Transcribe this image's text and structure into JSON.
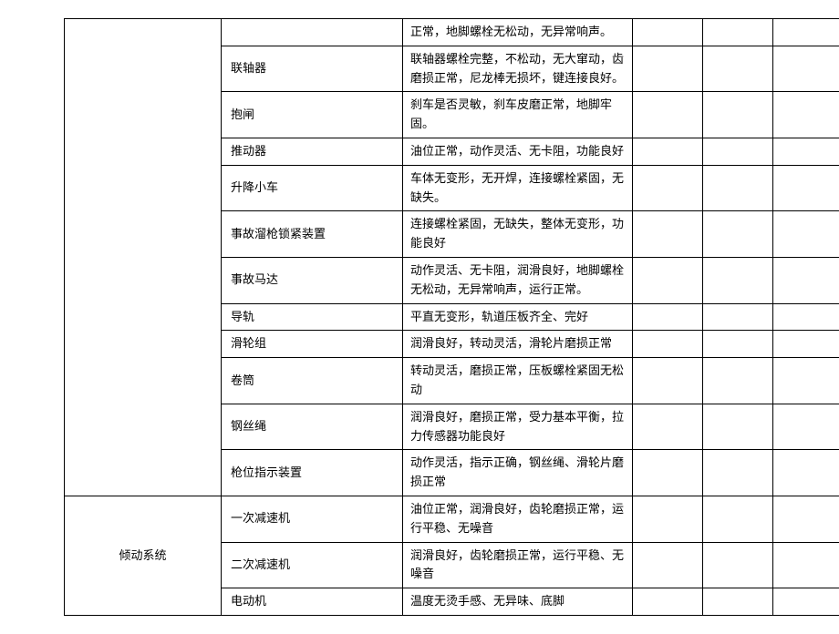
{
  "rows": [
    {
      "group": "",
      "item": "",
      "desc": "正常，地脚螺栓无松动，无异常响声。"
    },
    {
      "item": "联轴器",
      "desc": "联轴器螺栓完整，不松动，无大窜动，齿磨损正常，尼龙棒无损坏，键连接良好。"
    },
    {
      "item": "抱闸",
      "desc": "刹车是否灵敏，刹车皮磨正常，地脚牢固。"
    },
    {
      "item": "推动器",
      "desc": "油位正常，动作灵活、无卡阻，功能良好"
    },
    {
      "item": "升降小车",
      "desc": "车体无变形，无开焊，连接螺栓紧固，无缺失。"
    },
    {
      "item": "事故溜枪锁紧装置",
      "desc": "连接螺栓紧固，无缺失，整体无变形，功能良好"
    },
    {
      "item": "事故马达",
      "desc": "动作灵活、无卡阻，润滑良好，地脚螺栓无松动，无异常响声，运行正常。"
    },
    {
      "item": "导轨",
      "desc": "平直无变形，轨道压板齐全、完好"
    },
    {
      "item": "滑轮组",
      "desc": "润滑良好，转动灵活，滑轮片磨损正常"
    },
    {
      "item": "卷筒",
      "desc": "转动灵活，磨损正常，压板螺栓紧固无松动"
    },
    {
      "item": "钢丝绳",
      "desc": "润滑良好，磨损正常，受力基本平衡，拉力传感器功能良好"
    },
    {
      "item": "枪位指示装置",
      "desc": "动作灵活，指示正确，钢丝绳、滑轮片磨损正常"
    },
    {
      "group": "倾动系统",
      "item": "一次减速机",
      "desc": "油位正常，润滑良好，齿轮磨损正常，运行平稳、无噪音"
    },
    {
      "item": "二次减速机",
      "desc": "润滑良好，齿轮磨损正常，运行平稳、无噪音"
    },
    {
      "item": "电动机",
      "desc": "温度无烫手感、无异味、底脚"
    }
  ]
}
